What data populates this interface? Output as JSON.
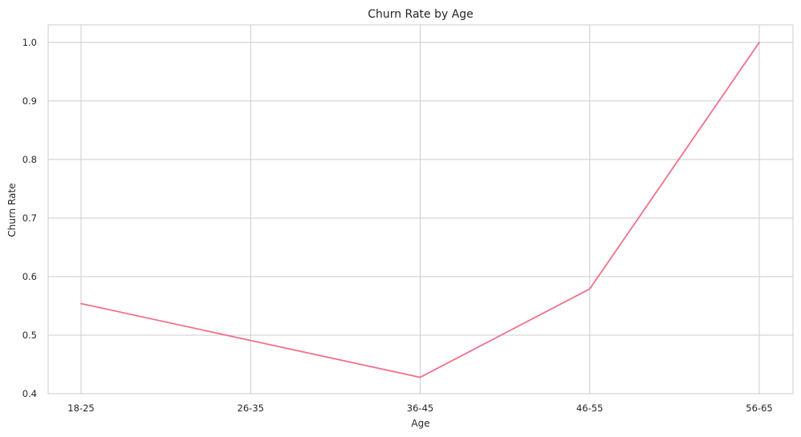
{
  "chart_data": {
    "type": "line",
    "title": "Churn Rate by Age",
    "xlabel": "Age",
    "ylabel": "Churn Rate",
    "categories": [
      "18-25",
      "26-35",
      "36-45",
      "46-55",
      "56-65"
    ],
    "series": [
      {
        "values": [
          0.554,
          0.491,
          0.428,
          0.579,
          1.0
        ],
        "color": "#f07188"
      }
    ],
    "ylim": [
      0.4,
      1.03
    ],
    "yticks": [
      0.4,
      0.5,
      0.6,
      0.7,
      0.8,
      0.9,
      1.0
    ],
    "ytick_labels": [
      "0.4",
      "0.5",
      "0.6",
      "0.7",
      "0.8",
      "0.9",
      "1.0"
    ],
    "grid": true,
    "colors": {
      "grid": "#cccccc",
      "text": "#262626",
      "background": "#ffffff"
    }
  }
}
